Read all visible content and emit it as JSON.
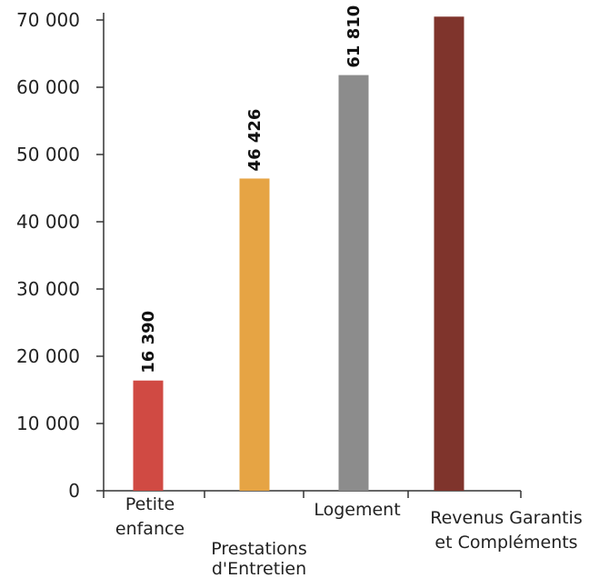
{
  "chart_data": {
    "type": "bar",
    "categories": [
      [
        "Petite",
        "enfance"
      ],
      [
        "Prestations",
        "d'Entretien"
      ],
      [
        "Logement"
      ],
      [
        "Revenus Garantis",
        "et Compléments"
      ]
    ],
    "values": [
      16390,
      46426,
      61810,
      70500
    ],
    "value_labels": [
      "16 390",
      "46 426",
      "61 810",
      ""
    ],
    "colors": [
      "#d04a43",
      "#e6a444",
      "#8c8c8c",
      "#7f342c"
    ],
    "yticks": [
      0,
      10000,
      20000,
      30000,
      40000,
      50000,
      60000,
      70000
    ],
    "ytick_labels": [
      "0",
      "10 000",
      "20 000",
      "30 000",
      "40 000",
      "50 000",
      "60 000",
      "70 000"
    ],
    "ylim": [
      0,
      70000
    ],
    "title": "",
    "xlabel": "",
    "ylabel": "",
    "grid": false,
    "legend": "none"
  }
}
